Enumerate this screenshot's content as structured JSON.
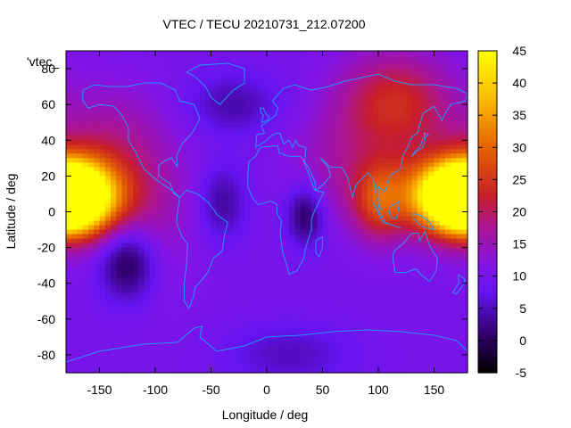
{
  "chart_data": {
    "type": "heatmap",
    "title": "VTEC / TECU 20210731_212.07200",
    "xlabel": "Longitude / deg",
    "ylabel": "Latitude / deg",
    "series_label": "'vtec_",
    "xlim": [
      -180,
      180
    ],
    "ylim": [
      -90,
      90
    ],
    "x_ticks": [
      -150,
      -100,
      -50,
      0,
      50,
      100,
      150
    ],
    "y_ticks": [
      -80,
      -60,
      -40,
      -20,
      0,
      20,
      40,
      60,
      80
    ],
    "colorbar": {
      "min": -5,
      "max": 45,
      "ticks": [
        -5,
        0,
        5,
        10,
        15,
        20,
        25,
        30,
        35,
        40,
        45
      ],
      "palette": "black-purple-red-orange-yellow"
    },
    "blobs": [
      {
        "lon": -180,
        "lat": 8,
        "value": 44,
        "width_lon": 25,
        "width_lat": 12
      },
      {
        "lon": -165,
        "lat": 10,
        "value": 30,
        "width_lon": 35,
        "width_lat": 18
      },
      {
        "lon": 175,
        "lat": 8,
        "value": 40,
        "width_lon": 22,
        "width_lat": 12
      },
      {
        "lon": 130,
        "lat": 10,
        "value": 22,
        "width_lon": 40,
        "width_lat": 16
      },
      {
        "lon": 100,
        "lat": 5,
        "value": 20,
        "width_lon": 15,
        "width_lat": 15
      },
      {
        "lon": 115,
        "lat": 60,
        "value": 24,
        "width_lon": 35,
        "width_lat": 20
      },
      {
        "lon": -140,
        "lat": 45,
        "value": 15,
        "width_lon": 35,
        "width_lat": 20
      },
      {
        "lon": -125,
        "lat": -28,
        "value": -2,
        "width_lon": 18,
        "width_lat": 15
      },
      {
        "lon": 35,
        "lat": -2,
        "value": 0,
        "width_lon": 12,
        "width_lat": 12
      },
      {
        "lon": -40,
        "lat": 5,
        "value": 3,
        "width_lon": 15,
        "width_lat": 15
      },
      {
        "lon": -30,
        "lat": 60,
        "value": 4,
        "width_lon": 30,
        "width_lat": 12
      },
      {
        "lon": 20,
        "lat": -80,
        "value": 5,
        "width_lon": 40,
        "width_lat": 12
      },
      {
        "lon": -100,
        "lat": 0,
        "value": 14,
        "width_lon": 30,
        "width_lat": 30
      },
      {
        "lon": 60,
        "lat": 30,
        "value": 14,
        "width_lon": 30,
        "width_lat": 20
      }
    ],
    "background_value": 10
  }
}
